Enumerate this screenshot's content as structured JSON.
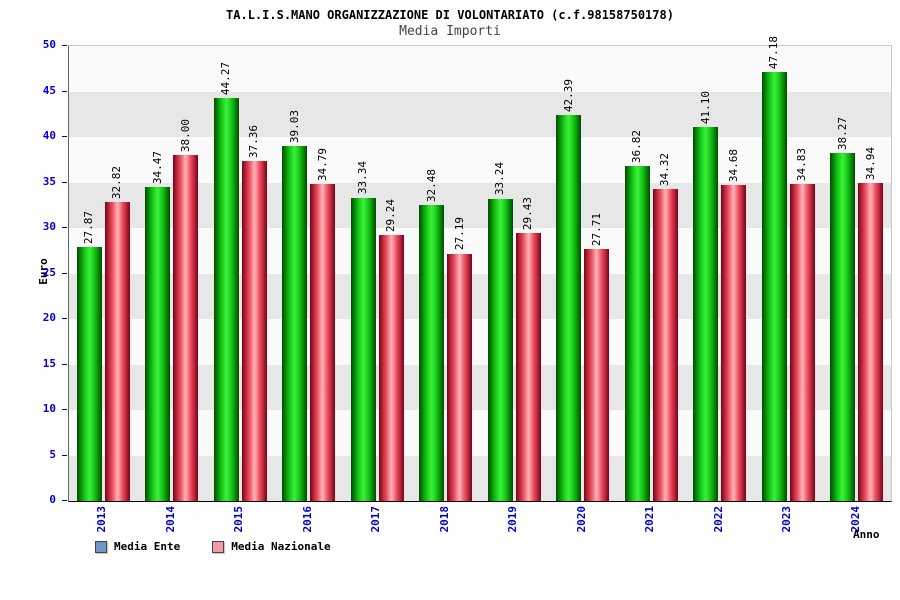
{
  "chart_data": {
    "type": "bar",
    "title": "TA.L.I.S.MANO ORGANIZZAZIONE DI VOLONTARIATO (c.f.98158750178)",
    "subtitle": "Media Importi",
    "xlabel": "Anno",
    "ylabel": "Euro",
    "ylim": [
      0,
      50
    ],
    "ytick_step": 5,
    "grid": "alternating-horizontal-bands",
    "legend_position": "bottom-left",
    "categories": [
      "2013",
      "2014",
      "2015",
      "2016",
      "2017",
      "2018",
      "2019",
      "2020",
      "2021",
      "2022",
      "2023",
      "2024"
    ],
    "series": [
      {
        "name": "Media Ente",
        "bar_color_main": "#2ee52e",
        "bar_color_edge": "#004c00",
        "legend_swatch": "#6e96c8",
        "values": [
          27.87,
          34.47,
          44.27,
          39.03,
          33.34,
          32.48,
          33.24,
          42.39,
          36.82,
          41.1,
          47.18,
          38.27
        ]
      },
      {
        "name": "Media Nazionale",
        "bar_color_main": "#ffb4ba",
        "bar_color_edge": "#7d0018",
        "legend_swatch": "#f29ba4",
        "values": [
          32.82,
          38.0,
          37.36,
          34.79,
          29.24,
          27.19,
          29.43,
          27.71,
          34.32,
          34.68,
          34.83,
          34.94
        ]
      }
    ],
    "colors": {
      "axis_text": "#0000cc",
      "value_label": "#000000",
      "band_light": "#fafafa",
      "band_dark": "#e7e7e7"
    }
  }
}
